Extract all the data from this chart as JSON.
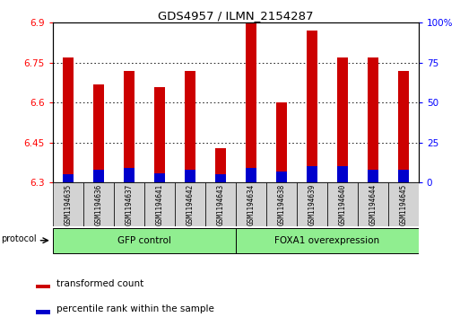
{
  "title": "GDS4957 / ILMN_2154287",
  "samples": [
    "GSM1194635",
    "GSM1194636",
    "GSM1194637",
    "GSM1194641",
    "GSM1194642",
    "GSM1194643",
    "GSM1194634",
    "GSM1194638",
    "GSM1194639",
    "GSM1194640",
    "GSM1194644",
    "GSM1194645"
  ],
  "transformed_counts": [
    6.77,
    6.67,
    6.72,
    6.66,
    6.72,
    6.43,
    6.9,
    6.6,
    6.87,
    6.77,
    6.77,
    6.72
  ],
  "percentile_ranks": [
    5,
    8,
    9,
    6,
    8,
    5,
    9,
    7,
    10,
    10,
    8,
    8
  ],
  "bar_color_red": "#CC0000",
  "bar_color_blue": "#0000CC",
  "y_min": 6.3,
  "y_max": 6.9,
  "y_ticks": [
    6.3,
    6.45,
    6.6,
    6.75,
    6.9
  ],
  "y2_ticks": [
    0,
    25,
    50,
    75,
    100
  ],
  "bar_width": 0.35,
  "legend_red": "transformed count",
  "legend_blue": "percentile rank within the sample",
  "protocol_label": "protocol",
  "gfp_color": "#90EE90",
  "foxa_color": "#90EE90",
  "sample_box_color": "#d3d3d3"
}
